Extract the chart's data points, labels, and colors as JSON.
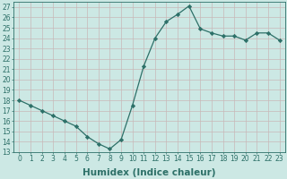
{
  "x": [
    0,
    1,
    2,
    3,
    4,
    5,
    6,
    7,
    8,
    9,
    10,
    11,
    12,
    13,
    14,
    15,
    16,
    17,
    18,
    19,
    20,
    21,
    22,
    23
  ],
  "y": [
    18.0,
    17.5,
    17.0,
    16.5,
    16.0,
    15.5,
    14.5,
    13.8,
    13.3,
    14.2,
    17.5,
    21.3,
    24.0,
    25.6,
    26.3,
    27.1,
    24.9,
    24.5,
    24.2,
    24.2,
    23.8,
    24.5,
    24.5,
    23.8
  ],
  "line_color": "#2d7068",
  "marker": "D",
  "markersize": 2.2,
  "linewidth": 0.9,
  "bg_color": "#cce8e4",
  "grid_color": "#c8b8b8",
  "xlabel": "Humidex (Indice chaleur)",
  "xlim": [
    -0.5,
    23.5
  ],
  "ylim": [
    13,
    27.5
  ],
  "yticks": [
    13,
    14,
    15,
    16,
    17,
    18,
    19,
    20,
    21,
    22,
    23,
    24,
    25,
    26,
    27
  ],
  "xticks": [
    0,
    1,
    2,
    3,
    4,
    5,
    6,
    7,
    8,
    9,
    10,
    11,
    12,
    13,
    14,
    15,
    16,
    17,
    18,
    19,
    20,
    21,
    22,
    23
  ],
  "tick_fontsize": 5.5,
  "xlabel_fontsize": 7.5,
  "xlabel_fontweight": "bold",
  "tick_color": "#2d7068"
}
